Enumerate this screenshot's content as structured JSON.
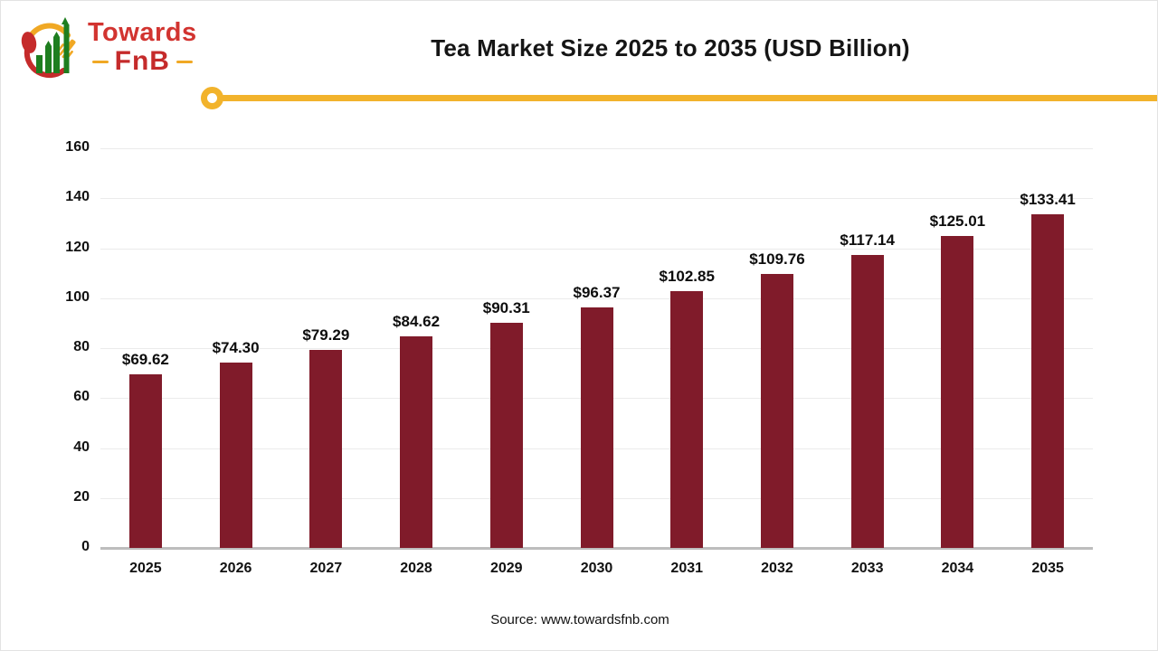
{
  "brand": {
    "name_line1": "Towards",
    "name_line2": "FnB"
  },
  "chart_data": {
    "type": "bar",
    "title": "Tea Market Size 2025 to 2035 (USD Billion)",
    "unit": "USD Billion",
    "categories": [
      "2025",
      "2026",
      "2027",
      "2028",
      "2029",
      "2030",
      "2031",
      "2032",
      "2033",
      "2034",
      "2035"
    ],
    "values": [
      69.62,
      74.3,
      79.29,
      84.62,
      90.31,
      96.37,
      102.85,
      109.76,
      117.14,
      125.01,
      133.41
    ],
    "value_labels": [
      "$69.62",
      "$74.30",
      "$79.29",
      "$84.62",
      "$90.31",
      "$96.37",
      "$102.85",
      "$109.76",
      "$117.14",
      "$125.01",
      "$133.41"
    ],
    "xlabel": "",
    "ylabel": "",
    "ylim": [
      0,
      160
    ],
    "yticks": [
      0,
      20,
      40,
      60,
      80,
      100,
      120,
      140,
      160
    ],
    "grid": "horizontal",
    "legend": "none",
    "bar_color": "#801b2a"
  },
  "footer": {
    "source": "Source: www.towardsfnb.com"
  },
  "colors": {
    "bar": "#801b2a",
    "accent_yellow": "#f2b32c",
    "brand_red": "#d23430",
    "brand_dark_red": "#c52b2b",
    "logo_green": "#1e7e1f",
    "grid": "#ebebeb",
    "axis": "#bdbdbd"
  }
}
